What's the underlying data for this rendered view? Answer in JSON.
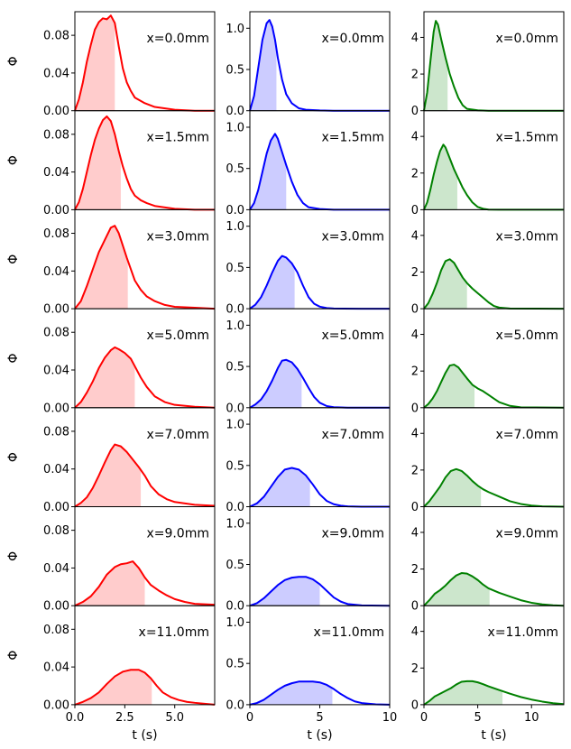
{
  "chart_data": {
    "type": "line",
    "layout": "7 rows x 3 columns of small-multiple panels; columns share y-range, rows share x-range per column",
    "ylabel": "Φ",
    "xlabel": "t (s)",
    "panel_labels": [
      "x=0.0mm",
      "x=1.5mm",
      "x=3.0mm",
      "x=5.0mm",
      "x=7.0mm",
      "x=9.0mm",
      "x=11.0mm"
    ],
    "columns": [
      {
        "color": "#ff0000",
        "fill_color": "#ffcccc",
        "xlim": [
          0,
          7
        ],
        "ylim": [
          0,
          0.105
        ],
        "xticks": [
          0,
          2.5,
          5
        ],
        "xtick_labels": [
          "0.0",
          "2.5",
          "5.0"
        ],
        "yticks": [
          0,
          0.04,
          0.08
        ],
        "ytick_labels": [
          "0.00",
          "0.04",
          "0.08"
        ],
        "shaded_until": [
          2.0,
          2.3,
          2.65,
          3.0,
          3.3,
          3.5,
          3.85
        ],
        "series": [
          {
            "x": [
              0,
              0.2,
              0.4,
              0.6,
              0.8,
              1.0,
              1.2,
              1.4,
              1.6,
              1.8,
              2.0,
              2.2,
              2.4,
              2.6,
              2.8,
              3.0,
              3.5,
              4.0,
              5.0,
              6.0,
              7.0
            ],
            "y": [
              0,
              0.012,
              0.03,
              0.052,
              0.07,
              0.086,
              0.094,
              0.098,
              0.097,
              0.101,
              0.093,
              0.068,
              0.045,
              0.03,
              0.021,
              0.014,
              0.008,
              0.004,
              0.001,
              0.0,
              0.0
            ]
          },
          {
            "x": [
              0,
              0.2,
              0.4,
              0.6,
              0.8,
              1.0,
              1.2,
              1.4,
              1.6,
              1.8,
              2.0,
              2.2,
              2.4,
              2.6,
              2.8,
              3.0,
              3.3,
              3.6,
              4.0,
              5.0,
              6.0,
              7.0
            ],
            "y": [
              0,
              0.008,
              0.022,
              0.04,
              0.058,
              0.074,
              0.086,
              0.095,
              0.099,
              0.094,
              0.08,
              0.062,
              0.046,
              0.033,
              0.022,
              0.015,
              0.01,
              0.007,
              0.004,
              0.001,
              0.0,
              0.0
            ]
          },
          {
            "x": [
              0,
              0.3,
              0.6,
              0.9,
              1.2,
              1.5,
              1.8,
              2.0,
              2.2,
              2.4,
              2.6,
              2.8,
              3.0,
              3.3,
              3.6,
              4.0,
              4.5,
              5.0,
              6.0,
              7.0
            ],
            "y": [
              0,
              0.008,
              0.024,
              0.042,
              0.06,
              0.073,
              0.086,
              0.088,
              0.08,
              0.067,
              0.054,
              0.042,
              0.03,
              0.02,
              0.013,
              0.008,
              0.004,
              0.002,
              0.001,
              0.0
            ]
          },
          {
            "x": [
              0,
              0.3,
              0.6,
              0.9,
              1.2,
              1.5,
              1.8,
              2.0,
              2.2,
              2.5,
              2.8,
              3.0,
              3.3,
              3.6,
              4.0,
              4.5,
              5.0,
              6.0,
              7.0
            ],
            "y": [
              0,
              0.006,
              0.016,
              0.028,
              0.042,
              0.053,
              0.061,
              0.064,
              0.062,
              0.058,
              0.052,
              0.044,
              0.032,
              0.022,
              0.012,
              0.006,
              0.003,
              0.001,
              0.0
            ]
          },
          {
            "x": [
              0,
              0.3,
              0.6,
              0.9,
              1.2,
              1.5,
              1.8,
              2.0,
              2.3,
              2.6,
              2.9,
              3.2,
              3.5,
              3.8,
              4.2,
              4.6,
              5.0,
              6.0,
              7.0
            ],
            "y": [
              0,
              0.004,
              0.01,
              0.02,
              0.033,
              0.047,
              0.06,
              0.066,
              0.064,
              0.058,
              0.05,
              0.042,
              0.033,
              0.022,
              0.013,
              0.008,
              0.005,
              0.002,
              0.001
            ]
          },
          {
            "x": [
              0,
              0.4,
              0.8,
              1.2,
              1.6,
              2.0,
              2.3,
              2.6,
              2.9,
              3.2,
              3.5,
              3.8,
              4.2,
              4.6,
              5.0,
              5.5,
              6.0,
              7.0
            ],
            "y": [
              0,
              0.004,
              0.01,
              0.02,
              0.033,
              0.041,
              0.044,
              0.045,
              0.047,
              0.04,
              0.03,
              0.022,
              0.016,
              0.011,
              0.007,
              0.004,
              0.002,
              0.001
            ]
          },
          {
            "x": [
              0,
              0.4,
              0.8,
              1.2,
              1.6,
              2.0,
              2.4,
              2.8,
              3.2,
              3.5,
              3.8,
              4.1,
              4.4,
              4.8,
              5.2,
              5.6,
              6.0,
              6.5,
              7.0
            ],
            "y": [
              0,
              0.003,
              0.007,
              0.013,
              0.022,
              0.03,
              0.035,
              0.037,
              0.037,
              0.034,
              0.028,
              0.02,
              0.013,
              0.008,
              0.005,
              0.003,
              0.002,
              0.001,
              0.0
            ]
          }
        ]
      },
      {
        "color": "#0000ff",
        "fill_color": "#ccccff",
        "xlim": [
          0,
          10
        ],
        "ylim": [
          0,
          1.2
        ],
        "xticks": [
          0,
          5,
          10
        ],
        "xtick_labels": [
          "0",
          "5",
          "10"
        ],
        "yticks": [
          0,
          0.5,
          1.0
        ],
        "ytick_labels": [
          "0.0",
          "0.5",
          "1.0"
        ],
        "shaded_until": [
          1.9,
          2.6,
          3.2,
          3.7,
          4.3,
          5.0,
          5.9
        ],
        "series": [
          {
            "x": [
              0,
              0.3,
              0.6,
              0.9,
              1.2,
              1.4,
              1.6,
              1.8,
              2.0,
              2.3,
              2.6,
              3.0,
              3.5,
              4.0,
              5.0,
              6.0,
              8.0,
              10.0
            ],
            "y": [
              0,
              0.18,
              0.52,
              0.86,
              1.06,
              1.1,
              1.02,
              0.86,
              0.64,
              0.38,
              0.2,
              0.09,
              0.03,
              0.012,
              0.003,
              0.0,
              0.0,
              0.0
            ]
          },
          {
            "x": [
              0,
              0.3,
              0.6,
              0.9,
              1.2,
              1.5,
              1.8,
              2.0,
              2.3,
              2.6,
              3.0,
              3.4,
              3.8,
              4.2,
              5.0,
              6.0,
              8.0,
              10.0
            ],
            "y": [
              0,
              0.08,
              0.24,
              0.46,
              0.68,
              0.84,
              0.92,
              0.86,
              0.7,
              0.54,
              0.34,
              0.18,
              0.08,
              0.03,
              0.008,
              0.0,
              0.0,
              0.0
            ]
          },
          {
            "x": [
              0,
              0.4,
              0.8,
              1.2,
              1.6,
              2.0,
              2.3,
              2.6,
              3.0,
              3.4,
              3.8,
              4.2,
              4.6,
              5.0,
              5.5,
              6.0,
              8.0,
              10.0
            ],
            "y": [
              0,
              0.05,
              0.14,
              0.28,
              0.44,
              0.58,
              0.64,
              0.62,
              0.55,
              0.44,
              0.28,
              0.14,
              0.06,
              0.025,
              0.008,
              0.002,
              0.0,
              0.0
            ]
          },
          {
            "x": [
              0,
              0.4,
              0.8,
              1.2,
              1.6,
              2.0,
              2.3,
              2.6,
              3.0,
              3.4,
              3.8,
              4.2,
              4.6,
              5.0,
              5.5,
              6.0,
              7.0,
              8.0,
              10.0
            ],
            "y": [
              0,
              0.04,
              0.1,
              0.2,
              0.33,
              0.48,
              0.57,
              0.58,
              0.55,
              0.47,
              0.36,
              0.24,
              0.13,
              0.06,
              0.02,
              0.006,
              0.001,
              0.0,
              0.0
            ]
          },
          {
            "x": [
              0,
              0.5,
              1.0,
              1.5,
              2.0,
              2.5,
              3.0,
              3.5,
              4.0,
              4.5,
              5.0,
              5.5,
              6.0,
              6.5,
              7.0,
              8.0,
              10.0
            ],
            "y": [
              0,
              0.04,
              0.12,
              0.24,
              0.36,
              0.45,
              0.47,
              0.45,
              0.38,
              0.27,
              0.15,
              0.07,
              0.03,
              0.012,
              0.004,
              0.0,
              0.0
            ]
          },
          {
            "x": [
              0,
              0.5,
              1.0,
              1.5,
              2.0,
              2.5,
              3.0,
              3.5,
              4.0,
              4.5,
              5.0,
              5.5,
              6.0,
              6.5,
              7.0,
              8.0,
              10.0
            ],
            "y": [
              0,
              0.03,
              0.09,
              0.17,
              0.25,
              0.31,
              0.34,
              0.35,
              0.35,
              0.32,
              0.26,
              0.18,
              0.1,
              0.05,
              0.02,
              0.004,
              0.0
            ]
          },
          {
            "x": [
              0,
              0.5,
              1.0,
              1.5,
              2.0,
              2.5,
              3.0,
              3.5,
              4.0,
              4.5,
              5.0,
              5.5,
              6.0,
              6.5,
              7.0,
              7.5,
              8.0,
              9.0,
              10.0
            ],
            "y": [
              0,
              0.02,
              0.06,
              0.12,
              0.18,
              0.23,
              0.26,
              0.28,
              0.28,
              0.28,
              0.27,
              0.24,
              0.19,
              0.13,
              0.08,
              0.04,
              0.02,
              0.005,
              0.0
            ]
          }
        ]
      },
      {
        "color": "#008000",
        "fill_color": "#cce6cc",
        "xlim": [
          0,
          13
        ],
        "ylim": [
          0,
          5.4
        ],
        "xticks": [
          0,
          5,
          10
        ],
        "xtick_labels": [
          "0",
          "5",
          "10"
        ],
        "yticks": [
          0,
          2,
          4
        ],
        "ytick_labels": [
          "0",
          "2",
          "4"
        ],
        "shaded_until": [
          2.2,
          3.1,
          4.0,
          4.7,
          5.3,
          6.1,
          7.3
        ],
        "series": [
          {
            "x": [
              0,
              0.3,
              0.6,
              0.9,
              1.1,
              1.3,
              1.6,
              2.0,
              2.4,
              2.8,
              3.2,
              3.6,
              4.0,
              5.0,
              6.0,
              8.0,
              13.0
            ],
            "y": [
              0,
              1.0,
              2.7,
              4.3,
              4.9,
              4.7,
              3.9,
              2.9,
              2.0,
              1.3,
              0.7,
              0.3,
              0.1,
              0.02,
              0.0,
              0.0,
              0.0
            ]
          },
          {
            "x": [
              0,
              0.3,
              0.6,
              0.9,
              1.2,
              1.5,
              1.8,
              2.0,
              2.4,
              2.8,
              3.2,
              3.6,
              4.0,
              4.5,
              5.0,
              5.5,
              6.0,
              7.0,
              13.0
            ],
            "y": [
              0,
              0.4,
              1.1,
              1.9,
              2.6,
              3.2,
              3.55,
              3.4,
              2.8,
              2.2,
              1.7,
              1.2,
              0.8,
              0.4,
              0.15,
              0.05,
              0.01,
              0.0,
              0.0
            ]
          },
          {
            "x": [
              0,
              0.4,
              0.8,
              1.2,
              1.6,
              2.0,
              2.4,
              2.8,
              3.2,
              3.6,
              4.0,
              4.5,
              5.0,
              5.5,
              6.0,
              6.5,
              7.0,
              8.0,
              13.0
            ],
            "y": [
              0,
              0.3,
              0.8,
              1.4,
              2.1,
              2.6,
              2.7,
              2.5,
              2.1,
              1.7,
              1.4,
              1.1,
              0.85,
              0.6,
              0.35,
              0.15,
              0.06,
              0.01,
              0.0
            ]
          },
          {
            "x": [
              0,
              0.4,
              0.8,
              1.2,
              1.6,
              2.0,
              2.4,
              2.8,
              3.2,
              3.6,
              4.0,
              4.5,
              5.0,
              5.5,
              6.0,
              6.5,
              7.0,
              8.0,
              9.0,
              13.0
            ],
            "y": [
              0,
              0.2,
              0.5,
              0.9,
              1.4,
              1.9,
              2.3,
              2.35,
              2.2,
              1.9,
              1.6,
              1.25,
              1.05,
              0.9,
              0.7,
              0.5,
              0.3,
              0.1,
              0.02,
              0.0
            ]
          },
          {
            "x": [
              0,
              0.5,
              1.0,
              1.5,
              2.0,
              2.5,
              3.0,
              3.5,
              4.0,
              4.5,
              5.0,
              5.5,
              6.0,
              7.0,
              8.0,
              9.0,
              10.0,
              11.0,
              13.0
            ],
            "y": [
              0,
              0.3,
              0.7,
              1.1,
              1.6,
              1.95,
              2.05,
              1.95,
              1.7,
              1.4,
              1.15,
              0.95,
              0.8,
              0.55,
              0.3,
              0.15,
              0.06,
              0.02,
              0.0
            ]
          },
          {
            "x": [
              0,
              0.5,
              1.0,
              1.5,
              2.0,
              2.5,
              3.0,
              3.5,
              4.0,
              4.5,
              5.0,
              5.5,
              6.0,
              7.0,
              8.0,
              9.0,
              10.0,
              11.0,
              12.0,
              13.0
            ],
            "y": [
              0,
              0.3,
              0.65,
              0.85,
              1.1,
              1.4,
              1.65,
              1.78,
              1.75,
              1.6,
              1.4,
              1.15,
              0.95,
              0.7,
              0.5,
              0.3,
              0.16,
              0.07,
              0.02,
              0.0
            ]
          },
          {
            "x": [
              0,
              0.5,
              1.0,
              1.5,
              2.0,
              2.5,
              3.0,
              3.5,
              4.0,
              4.5,
              5.0,
              5.5,
              6.0,
              7.0,
              8.0,
              9.0,
              10.0,
              11.0,
              12.0,
              13.0
            ],
            "y": [
              0,
              0.2,
              0.45,
              0.6,
              0.75,
              0.9,
              1.1,
              1.25,
              1.28,
              1.28,
              1.22,
              1.12,
              1.0,
              0.8,
              0.6,
              0.42,
              0.28,
              0.17,
              0.08,
              0.03
            ]
          }
        ]
      }
    ]
  }
}
